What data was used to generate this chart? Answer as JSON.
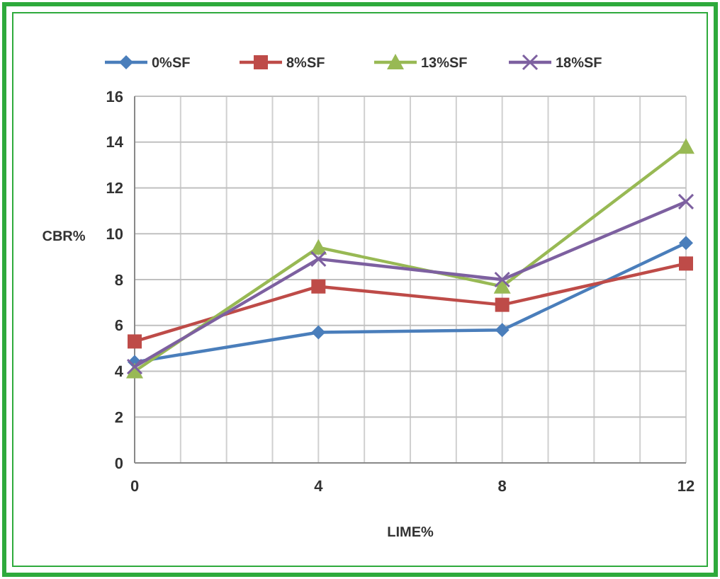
{
  "chart_data": {
    "type": "line",
    "xlabel": "LIME%",
    "ylabel": "CBR%",
    "x": [
      0,
      4,
      8,
      12
    ],
    "xlim": [
      0,
      12
    ],
    "xticks": [
      0,
      {
        "value": 1,
        "label": null
      },
      {
        "value": 2,
        "label": null
      },
      {
        "value": 3,
        "label": null
      },
      4,
      {
        "value": 5,
        "label": null
      },
      {
        "value": 6,
        "label": null
      },
      {
        "value": 7,
        "label": null
      },
      8,
      {
        "value": 9,
        "label": null
      },
      {
        "value": 10,
        "label": null
      },
      {
        "value": 11,
        "label": null
      },
      12
    ],
    "ylim": [
      0,
      16
    ],
    "yticks": [
      0,
      2,
      4,
      6,
      8,
      10,
      12,
      14,
      16
    ],
    "grid": true,
    "legend": "top",
    "series": [
      {
        "name": "0%SF",
        "color": "#4a7ebb",
        "marker": "diamond",
        "values": [
          4.4,
          5.7,
          5.8,
          9.6
        ]
      },
      {
        "name": "8%SF",
        "color": "#be4b48",
        "marker": "square",
        "values": [
          5.3,
          7.7,
          6.9,
          8.7
        ]
      },
      {
        "name": "13%SF",
        "color": "#98b954",
        "marker": "triangle",
        "values": [
          4.0,
          9.4,
          7.7,
          13.8
        ]
      },
      {
        "name": "18%SF",
        "color": "#7d60a0",
        "marker": "cross",
        "values": [
          4.2,
          8.9,
          8.0,
          11.4
        ]
      }
    ]
  }
}
